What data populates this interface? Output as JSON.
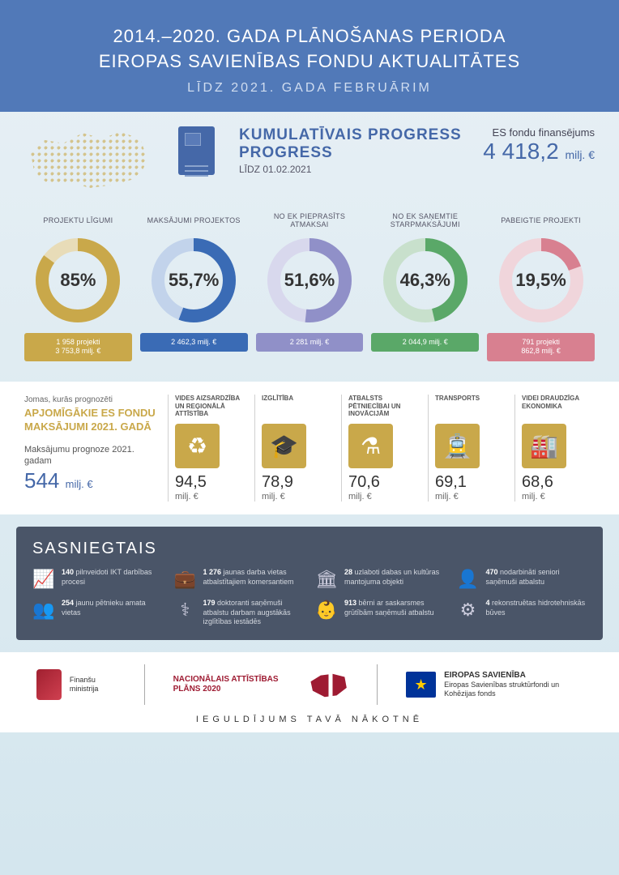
{
  "header": {
    "title_line1": "2014.–2020. GADA PLĀNOŠANAS PERIODA",
    "title_line2": "EIROPAS SAVIENĪBAS FONDU AKTUALITĀTES",
    "subtitle": "LĪDZ 2021. GADA FEBRUĀRIM"
  },
  "progress": {
    "section_title": "KUMULATĪVAIS PROGRESS",
    "section_subtitle": "LĪDZ 01.02.2021",
    "fund_label": "ES fondu finansējums",
    "fund_value": "4 418,2",
    "fund_unit": "milj. €",
    "donuts": [
      {
        "label": "PROJEKTU LĪGUMI",
        "percent": 85,
        "pct_text": "85%",
        "color": "#c9a84a",
        "track": "#e8dcb8",
        "footer_l1": "1 958 projekti",
        "footer_l2": "3 753,8 milj. €"
      },
      {
        "label": "MAKSĀJUMI PROJEKTOS",
        "percent": 55.7,
        "pct_text": "55,7%",
        "color": "#3a6bb5",
        "track": "#c2d3eb",
        "footer_l1": "2 462,3 milj. €",
        "footer_l2": ""
      },
      {
        "label": "NO EK PIEPRASĪTS ATMAKSAI",
        "percent": 51.6,
        "pct_text": "51,6%",
        "color": "#9090c8",
        "track": "#d8d8ed",
        "footer_l1": "2 281 milj. €",
        "footer_l2": ""
      },
      {
        "label": "NO EK SAŅEMTIE STARPMAKSĀJUMI",
        "percent": 46.3,
        "pct_text": "46,3%",
        "color": "#5aa868",
        "track": "#c8e0cc",
        "footer_l1": "2 044,9 milj. €",
        "footer_l2": ""
      },
      {
        "label": "PABEIGTIE PROJEKTI",
        "percent": 19.5,
        "pct_text": "19,5%",
        "color": "#d88090",
        "track": "#f0d5db",
        "footer_l1": "791 projekti",
        "footer_l2": "862,8 milj. €"
      }
    ]
  },
  "areas": {
    "title1": "Jomas, kurās prognozēti",
    "title2": "APJOMĪGĀKIE ES FONDU MAKSĀJUMI 2021. GADĀ",
    "subtitle": "Maksājumu prognoze 2021. gadam",
    "value": "544",
    "unit": "milj. €",
    "cards": [
      {
        "label": "VIDES AIZSARDZĪBA UN REĢIONĀLĀ ATTĪSTĪBA",
        "icon": "♻",
        "value": "94,5",
        "unit": "milj. €"
      },
      {
        "label": "IZGLĪTĪBA",
        "icon": "🎓",
        "value": "78,9",
        "unit": "milj. €"
      },
      {
        "label": "ATBALSTS PĒTNIECĪBAI UN INOVĀCIJĀM",
        "icon": "⚗",
        "value": "70,6",
        "unit": "milj. €"
      },
      {
        "label": "TRANSPORTS",
        "icon": "🚊",
        "value": "69,1",
        "unit": "milj. €"
      },
      {
        "label": "VIDEI DRAUDZĪGA EKONOMIKA",
        "icon": "🏭",
        "value": "68,6",
        "unit": "milj. €"
      }
    ]
  },
  "achieve": {
    "title": "SASNIEGTAIS",
    "items": [
      {
        "icon": "📈",
        "num": "140",
        "text": " pilnveidoti IKT darbības procesi"
      },
      {
        "icon": "💼",
        "num": "1 276",
        "text": " jaunas darba vietas atbalstītajiem komersantiem"
      },
      {
        "icon": "🏛",
        "num": "28",
        "text": " uzlaboti dabas un kultūras mantojuma objekti"
      },
      {
        "icon": "👤",
        "num": "470",
        "text": " nodarbināti seniori saņēmuši atbalstu"
      },
      {
        "icon": "👥",
        "num": "254",
        "text": " jaunu pētnieku amata vietas"
      },
      {
        "icon": "⚕",
        "num": "179",
        "text": " doktoranti saņēmuši atbalstu darbam augstākās izglītības iestādēs"
      },
      {
        "icon": "👶",
        "num": "913",
        "text": " bērni ar saskarsmes grūtībām saņēmuši atbalstu"
      },
      {
        "icon": "⚙",
        "num": "4",
        "text": " rekonstruētas hidrotehniskās būves"
      }
    ]
  },
  "footer": {
    "ministry": "Finanšu ministrija",
    "plan_title": "NACIONĀLAIS ATTĪSTĪBAS PLĀNS 2020",
    "eu_title": "EIROPAS SAVIENĪBA",
    "eu_sub": "Eiropas Savienības struktūrfondi un Kohēzijas fonds",
    "tagline": "IEGULDĪJUMS TAVĀ NĀKOTNĒ"
  },
  "colors": {
    "header_bg": "#5179b8",
    "accent_blue": "#4568a8",
    "accent_gold": "#c9a84a",
    "achieve_bg": "#4a5568"
  }
}
